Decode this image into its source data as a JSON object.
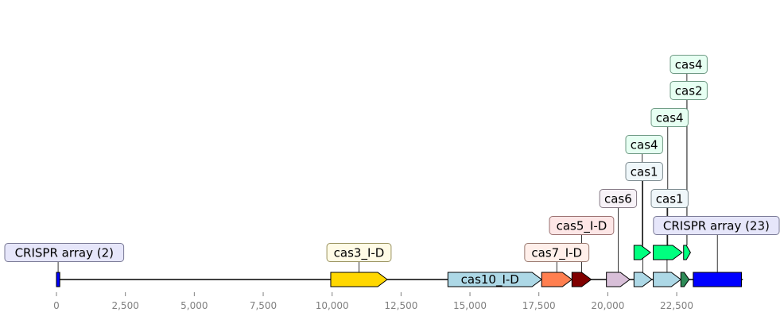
{
  "diagram": {
    "axis": {
      "ticks": [
        {
          "value": 0,
          "label": "0"
        },
        {
          "value": 2500,
          "label": "2,500"
        },
        {
          "value": 5000,
          "label": "5,000"
        },
        {
          "value": 7500,
          "label": "7,500"
        },
        {
          "value": 10000,
          "label": "10,000"
        },
        {
          "value": 12500,
          "label": "12,500"
        },
        {
          "value": 15000,
          "label": "15,000"
        },
        {
          "value": 17500,
          "label": "17,500"
        },
        {
          "value": 20000,
          "label": "20,000"
        },
        {
          "value": 22500,
          "label": "22,500"
        }
      ]
    },
    "line_segments": [
      [
        0,
        9950
      ],
      [
        12000,
        14200
      ],
      [
        17500,
        24900
      ]
    ],
    "features": [
      {
        "id": "crispr2",
        "start": 0,
        "end": 120,
        "track": 0,
        "shape": "box",
        "color": "#0000ff",
        "label": "CRISPR array (2)",
        "label_color": "#e6e6fa",
        "label_border": "#7a7a96",
        "label_level": 1
      },
      {
        "id": "cas3",
        "start": 9950,
        "end": 12000,
        "track": 0,
        "shape": "arrow",
        "color": "#ffd700",
        "label": "cas3_I-D",
        "label_color": "#fffbe6",
        "label_border": "#9a9360",
        "label_level": 1
      },
      {
        "id": "cas10",
        "start": 14200,
        "end": 17600,
        "track": 0,
        "shape": "arrow",
        "color": "#add8e6",
        "label": "cas10_I-D",
        "inline": true
      },
      {
        "id": "cas7",
        "start": 17600,
        "end": 18700,
        "track": 0,
        "shape": "arrow",
        "color": "#ff7f50",
        "label": "cas7_I-D",
        "label_color": "#ffefea",
        "label_border": "#9a7a70",
        "label_level": 1
      },
      {
        "id": "cas5",
        "start": 18700,
        "end": 19400,
        "track": 0,
        "shape": "arrow",
        "color": "#800000",
        "label": "cas5_I-D",
        "label_color": "#fde6e6",
        "label_border": "#9a7070",
        "label_level": 2
      },
      {
        "id": "cas6",
        "start": 19950,
        "end": 20800,
        "track": 0,
        "shape": "arrow",
        "color": "#d8bfd8",
        "label": "cas6",
        "label_color": "#f7f2f7",
        "label_border": "#857985",
        "label_level": 3
      },
      {
        "id": "cas1a",
        "start": 20950,
        "end": 21600,
        "track": 0,
        "shape": "arrow",
        "color": "#add8e6",
        "label": "cas1",
        "label_color": "#eff7fa",
        "label_border": "#7d8b90",
        "label_level": 4
      },
      {
        "id": "cas1b",
        "start": 21650,
        "end": 22650,
        "track": 0,
        "shape": "arrow",
        "color": "#add8e6",
        "label": "cas1",
        "label_color": "#eff7fa",
        "label_border": "#7d8b90",
        "label_level": 3
      },
      {
        "id": "cas2a",
        "start": 22650,
        "end": 22950,
        "track": 0,
        "shape": "arrow",
        "color": "#2e8b57",
        "label": "",
        "label_level": 0
      },
      {
        "id": "crispr23",
        "start": 23100,
        "end": 24850,
        "track": 0,
        "shape": "box",
        "color": "#0000ff",
        "label": "CRISPR array (23)",
        "label_color": "#e6e6fa",
        "label_border": "#7a7a96",
        "label_level": 2
      },
      {
        "id": "cas4a",
        "start": 20950,
        "end": 21550,
        "track": 1,
        "shape": "arrow",
        "color": "#00ff7f",
        "label": "cas4",
        "label_color": "#e6fff2",
        "label_border": "#6f9a84",
        "label_level": 5
      },
      {
        "id": "cas4b",
        "start": 21650,
        "end": 22700,
        "track": 1,
        "shape": "arrow",
        "color": "#00ff7f",
        "label": "cas4",
        "label_color": "#e6fff2",
        "label_border": "#6f9a84",
        "label_level": 6
      },
      {
        "id": "cas2b",
        "start": 22750,
        "end": 23000,
        "track": 1,
        "shape": "arrow",
        "color": "#00ff7f",
        "label": "cas2",
        "label_color": "#e6fff2",
        "label_border": "#6f9a84",
        "label_level": 7
      },
      {
        "id": "cas4c",
        "start": 22750,
        "end": 23000,
        "track": 1,
        "shape": "arrow",
        "color": "#00ff7f",
        "label": "cas4",
        "label_color": "#e6fff2",
        "label_border": "#6f9a84",
        "label_level": 8,
        "hidden_mark": true
      }
    ]
  }
}
